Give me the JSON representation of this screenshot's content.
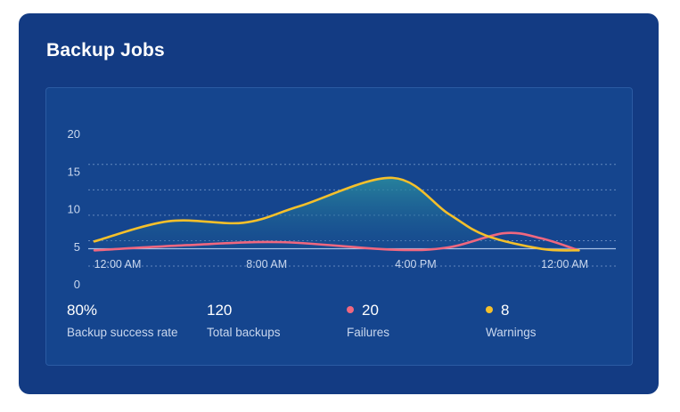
{
  "card": {
    "title": "Backup Jobs"
  },
  "chart_data": {
    "type": "line",
    "y_ticks": [
      0,
      5,
      10,
      15,
      20
    ],
    "ylim": [
      0,
      20
    ],
    "x_tick_labels": [
      "12:00 AM",
      "8:00 AM",
      "4:00 PM",
      "12:00 AM"
    ],
    "grid": true,
    "series": [
      {
        "color": "#f5c02b",
        "area_fill": true,
        "points": [
          {
            "hour": 0,
            "y": 5.8
          },
          {
            "hour": 4,
            "y": 8.5
          },
          {
            "hour": 8,
            "y": 8.3
          },
          {
            "hour": 11,
            "y": 10.5
          },
          {
            "hour": 16,
            "y": 14.3
          },
          {
            "hour": 19,
            "y": 9.5
          },
          {
            "hour": 21,
            "y": 6.6
          },
          {
            "hour": 24,
            "y": 4.8
          },
          {
            "hour": 26,
            "y": 4.6
          }
        ]
      },
      {
        "color": "#f0677f",
        "area_fill": false,
        "points": [
          {
            "hour": 0,
            "y": 4.6
          },
          {
            "hour": 5,
            "y": 5.3
          },
          {
            "hour": 10,
            "y": 5.7
          },
          {
            "hour": 16,
            "y": 4.7
          },
          {
            "hour": 19,
            "y": 5.0
          },
          {
            "hour": 22,
            "y": 6.9
          },
          {
            "hour": 24,
            "y": 6.2
          },
          {
            "hour": 26,
            "y": 4.6
          }
        ]
      }
    ]
  },
  "stats": [
    {
      "value": "80%",
      "label": "Backup success rate"
    },
    {
      "value": "120",
      "label": "Total backups"
    },
    {
      "value": "20",
      "label": "Failures",
      "dot_color": "#f0677f"
    },
    {
      "value": "8",
      "label": "Warnings",
      "dot_color": "#f5c02b"
    }
  ]
}
